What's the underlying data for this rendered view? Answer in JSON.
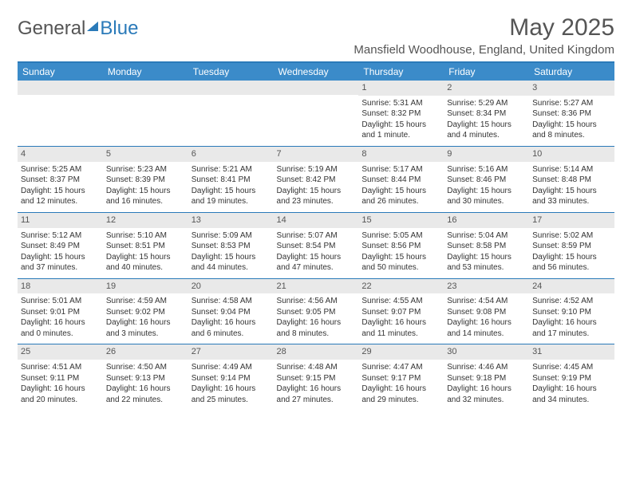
{
  "logo": {
    "part1": "General",
    "part2": "Blue"
  },
  "title": "May 2025",
  "location": "Mansfield Woodhouse, England, United Kingdom",
  "header_bg": "#3b8bc9",
  "border_color": "#2a7ab9",
  "daynum_bg": "#e9e9e9",
  "text_color": "#333333",
  "label_fontsize": 12,
  "cell_fontsize": 10,
  "weekdays": [
    "Sunday",
    "Monday",
    "Tuesday",
    "Wednesday",
    "Thursday",
    "Friday",
    "Saturday"
  ],
  "weeks": [
    [
      null,
      null,
      null,
      null,
      {
        "d": "1",
        "sr": "5:31 AM",
        "ss": "8:32 PM",
        "dl": "15 hours and 1 minute."
      },
      {
        "d": "2",
        "sr": "5:29 AM",
        "ss": "8:34 PM",
        "dl": "15 hours and 4 minutes."
      },
      {
        "d": "3",
        "sr": "5:27 AM",
        "ss": "8:36 PM",
        "dl": "15 hours and 8 minutes."
      }
    ],
    [
      {
        "d": "4",
        "sr": "5:25 AM",
        "ss": "8:37 PM",
        "dl": "15 hours and 12 minutes."
      },
      {
        "d": "5",
        "sr": "5:23 AM",
        "ss": "8:39 PM",
        "dl": "15 hours and 16 minutes."
      },
      {
        "d": "6",
        "sr": "5:21 AM",
        "ss": "8:41 PM",
        "dl": "15 hours and 19 minutes."
      },
      {
        "d": "7",
        "sr": "5:19 AM",
        "ss": "8:42 PM",
        "dl": "15 hours and 23 minutes."
      },
      {
        "d": "8",
        "sr": "5:17 AM",
        "ss": "8:44 PM",
        "dl": "15 hours and 26 minutes."
      },
      {
        "d": "9",
        "sr": "5:16 AM",
        "ss": "8:46 PM",
        "dl": "15 hours and 30 minutes."
      },
      {
        "d": "10",
        "sr": "5:14 AM",
        "ss": "8:48 PM",
        "dl": "15 hours and 33 minutes."
      }
    ],
    [
      {
        "d": "11",
        "sr": "5:12 AM",
        "ss": "8:49 PM",
        "dl": "15 hours and 37 minutes."
      },
      {
        "d": "12",
        "sr": "5:10 AM",
        "ss": "8:51 PM",
        "dl": "15 hours and 40 minutes."
      },
      {
        "d": "13",
        "sr": "5:09 AM",
        "ss": "8:53 PM",
        "dl": "15 hours and 44 minutes."
      },
      {
        "d": "14",
        "sr": "5:07 AM",
        "ss": "8:54 PM",
        "dl": "15 hours and 47 minutes."
      },
      {
        "d": "15",
        "sr": "5:05 AM",
        "ss": "8:56 PM",
        "dl": "15 hours and 50 minutes."
      },
      {
        "d": "16",
        "sr": "5:04 AM",
        "ss": "8:58 PM",
        "dl": "15 hours and 53 minutes."
      },
      {
        "d": "17",
        "sr": "5:02 AM",
        "ss": "8:59 PM",
        "dl": "15 hours and 56 minutes."
      }
    ],
    [
      {
        "d": "18",
        "sr": "5:01 AM",
        "ss": "9:01 PM",
        "dl": "16 hours and 0 minutes."
      },
      {
        "d": "19",
        "sr": "4:59 AM",
        "ss": "9:02 PM",
        "dl": "16 hours and 3 minutes."
      },
      {
        "d": "20",
        "sr": "4:58 AM",
        "ss": "9:04 PM",
        "dl": "16 hours and 6 minutes."
      },
      {
        "d": "21",
        "sr": "4:56 AM",
        "ss": "9:05 PM",
        "dl": "16 hours and 8 minutes."
      },
      {
        "d": "22",
        "sr": "4:55 AM",
        "ss": "9:07 PM",
        "dl": "16 hours and 11 minutes."
      },
      {
        "d": "23",
        "sr": "4:54 AM",
        "ss": "9:08 PM",
        "dl": "16 hours and 14 minutes."
      },
      {
        "d": "24",
        "sr": "4:52 AM",
        "ss": "9:10 PM",
        "dl": "16 hours and 17 minutes."
      }
    ],
    [
      {
        "d": "25",
        "sr": "4:51 AM",
        "ss": "9:11 PM",
        "dl": "16 hours and 20 minutes."
      },
      {
        "d": "26",
        "sr": "4:50 AM",
        "ss": "9:13 PM",
        "dl": "16 hours and 22 minutes."
      },
      {
        "d": "27",
        "sr": "4:49 AM",
        "ss": "9:14 PM",
        "dl": "16 hours and 25 minutes."
      },
      {
        "d": "28",
        "sr": "4:48 AM",
        "ss": "9:15 PM",
        "dl": "16 hours and 27 minutes."
      },
      {
        "d": "29",
        "sr": "4:47 AM",
        "ss": "9:17 PM",
        "dl": "16 hours and 29 minutes."
      },
      {
        "d": "30",
        "sr": "4:46 AM",
        "ss": "9:18 PM",
        "dl": "16 hours and 32 minutes."
      },
      {
        "d": "31",
        "sr": "4:45 AM",
        "ss": "9:19 PM",
        "dl": "16 hours and 34 minutes."
      }
    ]
  ],
  "labels": {
    "sunrise": "Sunrise: ",
    "sunset": "Sunset: ",
    "daylight": "Daylight: "
  }
}
